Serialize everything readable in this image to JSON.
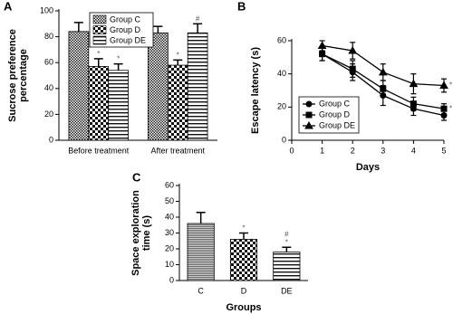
{
  "chart_data": [
    {
      "type": "bar",
      "title": "A",
      "ylabel": [
        "Sucrose preference",
        "percentage"
      ],
      "categories": [
        "Before treatment",
        "After treatment"
      ],
      "series": [
        {
          "name": "Group C",
          "hatch": "crosshatch",
          "values": [
            84,
            83
          ],
          "errors": [
            7,
            5
          ],
          "annotations": [
            null,
            null
          ]
        },
        {
          "name": "Group D",
          "hatch": "checker",
          "values": [
            57,
            58
          ],
          "errors": [
            6,
            4
          ],
          "annotations": [
            "*",
            "*"
          ]
        },
        {
          "name": "Group DE",
          "hatch": "hlines",
          "values": [
            54,
            83
          ],
          "errors": [
            5,
            7
          ],
          "annotations": [
            "*",
            "#"
          ]
        }
      ],
      "ylim": [
        0,
        100
      ],
      "yticks": [
        0,
        20,
        40,
        60,
        80,
        100
      ],
      "legend": "top"
    },
    {
      "type": "line",
      "title": "B",
      "xlabel": "Days",
      "ylabel": [
        "Escape latency (s)"
      ],
      "x": [
        1,
        2,
        3,
        4,
        5
      ],
      "series": [
        {
          "name": "Group C",
          "marker": "circle",
          "color": "#000000",
          "values": [
            52,
            41,
            27,
            19,
            15
          ],
          "errors": [
            4,
            5,
            6,
            4,
            3
          ],
          "annotations": [
            null,
            null,
            null,
            null,
            null
          ]
        },
        {
          "name": "Group D",
          "marker": "square",
          "color": "#000000",
          "values": [
            52,
            43,
            31,
            22,
            19
          ],
          "errors": [
            4,
            5,
            5,
            4,
            3
          ],
          "annotations": [
            null,
            null,
            null,
            null,
            "*"
          ]
        },
        {
          "name": "Group DE",
          "marker": "triangle",
          "color": "#000000",
          "values": [
            57,
            54,
            41,
            34,
            33
          ],
          "errors": [
            3,
            5,
            5,
            6,
            4
          ],
          "annotations": [
            null,
            null,
            null,
            null,
            "*,#"
          ]
        }
      ],
      "xlim": [
        0,
        5
      ],
      "xticks": [
        0,
        1,
        2,
        3,
        4,
        5
      ],
      "ylim": [
        0,
        60
      ],
      "yticks": [
        0,
        20,
        40,
        60
      ],
      "legend": "lower left"
    },
    {
      "type": "bar",
      "title": "C",
      "xlabel": "Groups",
      "ylabel": [
        "Space exploration",
        "time (s)"
      ],
      "categories": [
        "C",
        "D",
        "DE"
      ],
      "hatches": [
        "hstripes",
        "checker",
        "hlines"
      ],
      "values": [
        36,
        26,
        18
      ],
      "errors": [
        7,
        4,
        3
      ],
      "annotations": [
        null,
        [
          "*"
        ],
        [
          "#",
          "*"
        ]
      ],
      "ylim": [
        0,
        60
      ],
      "yticks": [
        0,
        10,
        20,
        30,
        40,
        50,
        60
      ]
    }
  ]
}
